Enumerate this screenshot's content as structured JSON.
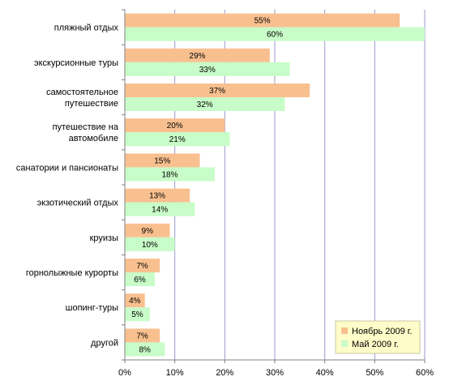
{
  "chart_data": {
    "type": "bar",
    "orientation": "horizontal",
    "categories": [
      [
        "пляжный отдых"
      ],
      [
        "экскурсионные туры"
      ],
      [
        "самостоятельное",
        "путешествие"
      ],
      [
        "путешествие на",
        "автомобиле"
      ],
      [
        "санатории и пансионаты"
      ],
      [
        "экзотический отдых"
      ],
      [
        "круизы"
      ],
      [
        "горнолыжные курорты"
      ],
      [
        "шопинг-туры"
      ],
      [
        "другой"
      ]
    ],
    "series": [
      {
        "name": "Ноябрь 2009 г.",
        "color": "#f9c08f",
        "values": [
          55,
          29,
          37,
          20,
          15,
          13,
          9,
          7,
          4,
          7
        ],
        "labels": [
          "55%",
          "29%",
          "37%",
          "20%",
          "15%",
          "13%",
          "9%",
          "7%",
          "4%",
          "7%"
        ]
      },
      {
        "name": "Май 2009 г.",
        "color": "#c8fcc8",
        "values": [
          60,
          33,
          32,
          21,
          18,
          14,
          10,
          6,
          5,
          8
        ],
        "labels": [
          "60%",
          "33%",
          "32%",
          "21%",
          "18%",
          "14%",
          "10%",
          "6%",
          "5%",
          "8%"
        ]
      }
    ],
    "xlim": [
      0,
      60
    ],
    "xticks": [
      "0%",
      "10%",
      "20%",
      "30%",
      "40%",
      "50%",
      "60%"
    ],
    "grid": true,
    "grid_color": "#9a9acc",
    "legend_background": "#fefcc8",
    "legend_position": "bottom-right"
  }
}
